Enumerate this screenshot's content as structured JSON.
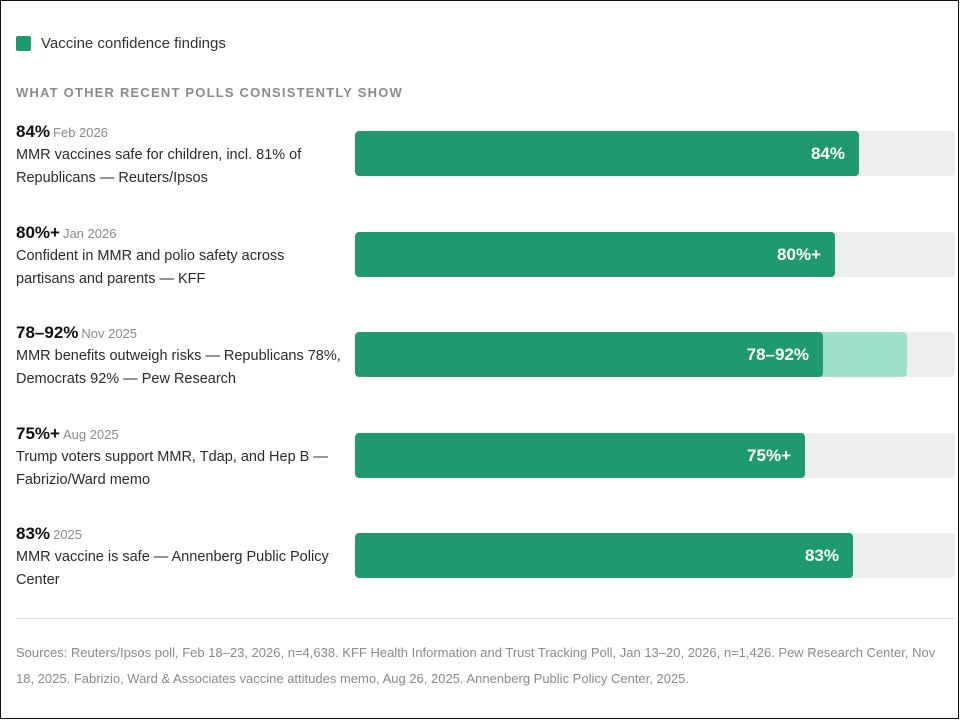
{
  "colors": {
    "primary_bar": "#1f9a6e",
    "range_bar": "#9fe1c8",
    "track": "#eeeeee"
  },
  "legend": {
    "label": "Vaccine confidence findings"
  },
  "heading": "WHAT OTHER RECENT POLLS CONSISTENTLY SHOW",
  "chart_data": {
    "type": "bar",
    "orientation": "horizontal",
    "xlim": [
      0,
      100
    ],
    "grid": false,
    "legend_position": "top-left",
    "series": [
      {
        "name": "Vaccine confidence findings"
      }
    ],
    "rows": [
      {
        "value_label": "84%",
        "date": "Feb 2026",
        "description": "MMR vaccines safe for children, incl. 81% of Republicans — Reuters/Ipsos",
        "value": 84,
        "range_high": null
      },
      {
        "value_label": "80%+",
        "date": "Jan 2026",
        "description": "Confident in MMR and polio safety across partisans and parents — KFF",
        "value": 80,
        "range_high": null
      },
      {
        "value_label": "78–92%",
        "date": "Nov 2025",
        "description": "MMR benefits outweigh risks — Republicans 78%, Democrats 92% — Pew Research",
        "value": 78,
        "range_high": 92
      },
      {
        "value_label": "75%+",
        "date": "Aug 2025",
        "description": "Trump voters support MMR, Tdap, and Hep B — Fabrizio/Ward memo",
        "value": 75,
        "range_high": null
      },
      {
        "value_label": "83%",
        "date": "2025",
        "description": "MMR vaccine is safe — Annenberg Public Policy Center",
        "value": 83,
        "range_high": null
      }
    ]
  },
  "sources": "Sources: Reuters/Ipsos poll, Feb 18–23, 2026, n=4,638. KFF Health Information and Trust Tracking Poll, Jan 13–20, 2026, n=1,426. Pew Research Center, Nov 18, 2025. Fabrizio, Ward & Associates vaccine attitudes memo, Aug 26, 2025. Annenberg Public Policy Center, 2025."
}
